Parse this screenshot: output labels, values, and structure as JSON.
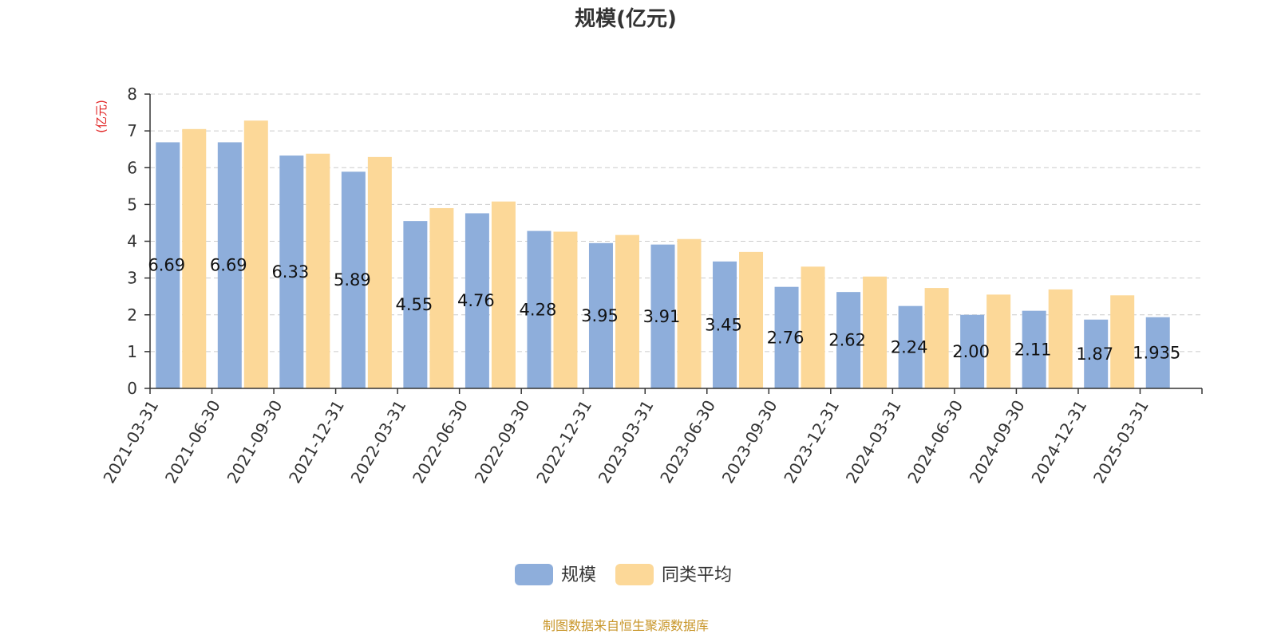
{
  "chart_data": {
    "type": "bar",
    "title": "规模(亿元)",
    "ylabel": "(亿元)",
    "xlabel": "",
    "ylim": [
      0,
      8
    ],
    "yticks": [
      0,
      1,
      2,
      3,
      4,
      5,
      6,
      7,
      8
    ],
    "grid": true,
    "legend_position": "bottom-center",
    "categories": [
      "2021-03-31",
      "2021-06-30",
      "2021-09-30",
      "2021-12-31",
      "2022-03-31",
      "2022-06-30",
      "2022-09-30",
      "2022-12-31",
      "2023-03-31",
      "2023-06-30",
      "2023-09-30",
      "2023-12-31",
      "2024-03-31",
      "2024-06-30",
      "2024-09-30",
      "2024-12-31",
      "2025-03-31"
    ],
    "series": [
      {
        "name": "规模",
        "color": "#8eaedb",
        "values": [
          6.69,
          6.69,
          6.33,
          5.89,
          4.55,
          4.76,
          4.28,
          3.95,
          3.91,
          3.45,
          2.76,
          2.62,
          2.24,
          2.0,
          2.11,
          1.87,
          1.935
        ],
        "labels": [
          "6.69",
          "6.69",
          "6.33",
          "5.89",
          "4.55",
          "4.76",
          "4.28",
          "3.95",
          "3.91",
          "3.45",
          "2.76",
          "2.62",
          "2.24",
          "2.00",
          "2.11",
          "1.87",
          "1.935"
        ]
      },
      {
        "name": "同类平均",
        "color": "#fcd898",
        "values": [
          7.05,
          7.28,
          6.38,
          6.29,
          4.9,
          5.08,
          4.26,
          4.17,
          4.06,
          3.71,
          3.31,
          3.04,
          2.73,
          2.55,
          2.69,
          2.53,
          null
        ]
      }
    ],
    "source": "制图数据来自恒生聚源数据库"
  }
}
